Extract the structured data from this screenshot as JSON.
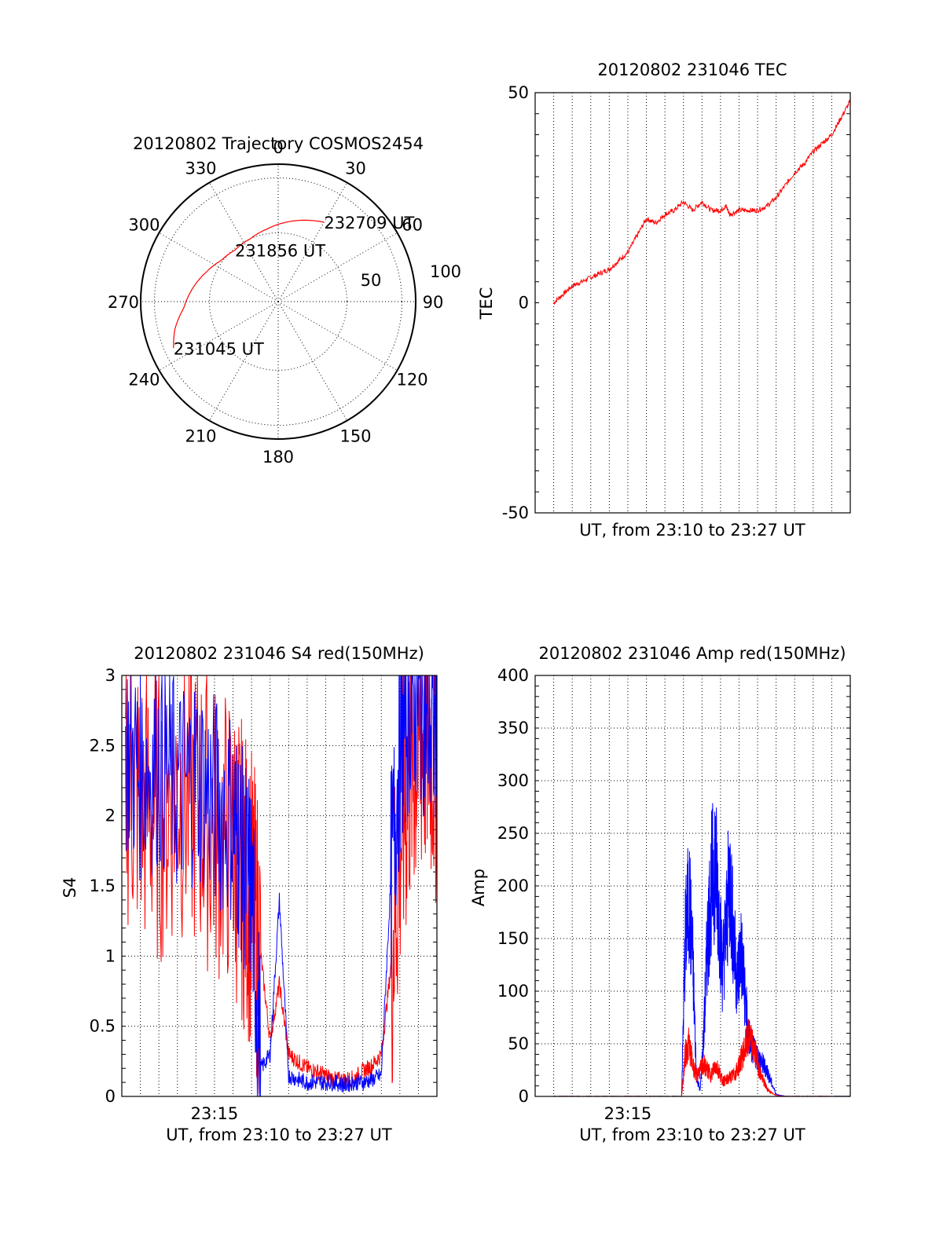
{
  "colors": {
    "red": "#ff0000",
    "blue": "#0000ff",
    "grid": "#000000"
  },
  "chart_data": [
    {
      "id": "trajectory",
      "type": "polar",
      "title": "20120802 Trajectory COSMOS2454",
      "angle_labels": [
        "0",
        "30",
        "60",
        "90",
        "120",
        "150",
        "180",
        "210",
        "240",
        "270",
        "300",
        "330"
      ],
      "radial_labels": [
        "50",
        "100"
      ],
      "track": {
        "series_color": "red",
        "points": [
          {
            "azimuth": 246,
            "elevation": 15
          },
          {
            "azimuth": 255,
            "elevation": 20
          },
          {
            "azimuth": 266,
            "elevation": 28
          },
          {
            "azimuth": 278,
            "elevation": 33
          },
          {
            "azimuth": 292,
            "elevation": 39
          },
          {
            "azimuth": 306,
            "elevation": 44
          },
          {
            "azimuth": 320,
            "elevation": 46
          },
          {
            "azimuth": 336,
            "elevation": 45
          },
          {
            "azimuth": 351,
            "elevation": 42
          },
          {
            "azimuth": 5,
            "elevation": 38
          },
          {
            "azimuth": 18,
            "elevation": 34
          },
          {
            "azimuth": 30,
            "elevation": 30
          }
        ]
      },
      "annotations": [
        {
          "text": "231045 UT",
          "azimuth": 246,
          "elevation": 15
        },
        {
          "text": "231856 UT",
          "azimuth": 320,
          "elevation": 46
        },
        {
          "text": "232709 UT",
          "azimuth": 30,
          "elevation": 30
        }
      ]
    },
    {
      "id": "tec",
      "type": "line",
      "title": "20120802 231046 TEC",
      "xlabel": "UT, from 23:10 to 23:27 UT",
      "ylabel": "TEC",
      "xlim": [
        0,
        17
      ],
      "ylim": [
        -50,
        50
      ],
      "yticks": [
        "50",
        "0",
        "-50"
      ],
      "ytick_values": [
        50,
        0,
        -50
      ],
      "xticks": [],
      "grid": true,
      "series": [
        {
          "color": "red",
          "x": [
            1,
            1.5,
            2,
            2.5,
            3,
            3.5,
            4,
            4.5,
            5,
            5.5,
            6,
            6.5,
            7,
            7.5,
            8,
            8.5,
            9,
            9.5,
            10,
            10.3,
            10.5,
            11,
            11.5,
            12,
            12.5,
            13,
            13.5,
            14,
            14.5,
            15,
            15.5,
            16,
            16.5,
            17
          ],
          "y": [
            0,
            2,
            4,
            5,
            6,
            7,
            8,
            10,
            12,
            16,
            20,
            19,
            21,
            22,
            24,
            22,
            24,
            22,
            22,
            23,
            21,
            22,
            22,
            22,
            23,
            25,
            28,
            31,
            33,
            36,
            38,
            40,
            44,
            48
          ]
        }
      ]
    },
    {
      "id": "s4",
      "type": "line",
      "title": "20120802 231046 S4 red(150MHz)",
      "xlabel": "UT, from 23:10 to 23:27 UT",
      "ylabel": "S4",
      "xlim": [
        0,
        17
      ],
      "ylim": [
        0,
        3
      ],
      "yticks": [
        "0",
        "0.5",
        "1",
        "1.5",
        "2",
        "2.5",
        "3"
      ],
      "ytick_values": [
        0,
        0.5,
        1,
        1.5,
        2,
        2.5,
        3
      ],
      "xticks": [
        "23:15"
      ],
      "xtick_values": [
        5
      ],
      "grid": true,
      "series": [
        {
          "color": "red",
          "x": [
            0.2,
            1,
            2,
            3,
            4,
            5,
            6,
            6.5,
            7,
            7.5,
            8,
            8.5,
            9,
            9.5,
            10,
            10.5,
            11,
            11.5,
            12,
            12.5,
            13,
            13.5,
            14,
            14.5,
            15,
            15.5,
            16,
            16.5,
            17
          ],
          "y": [
            2.3,
            2.1,
            2.0,
            2.2,
            2.1,
            1.9,
            1.8,
            1.6,
            1.4,
            1.0,
            0.4,
            0.8,
            0.3,
            0.25,
            0.2,
            0.18,
            0.15,
            0.12,
            0.12,
            0.13,
            0.18,
            0.22,
            0.3,
            0.9,
            1.8,
            2.3,
            2.5,
            2.6,
            2.4
          ]
        },
        {
          "color": "blue",
          "x": [
            0.2,
            1,
            2,
            3,
            4,
            5,
            6,
            6.5,
            7,
            7.5,
            8,
            8.5,
            9,
            9.5,
            10,
            10.5,
            11,
            11.5,
            12,
            12.5,
            13,
            13.5,
            14,
            14.5,
            15,
            15.5,
            16,
            16.5,
            17
          ],
          "y": [
            2.5,
            2.3,
            2.4,
            2.2,
            2.3,
            2.1,
            2.0,
            1.7,
            1.5,
            0.2,
            0.3,
            1.4,
            0.15,
            0.12,
            0.1,
            0.1,
            0.1,
            0.1,
            0.08,
            0.1,
            0.1,
            0.12,
            0.15,
            1.5,
            2.5,
            2.8,
            2.9,
            2.7,
            2.6
          ]
        }
      ]
    },
    {
      "id": "amp",
      "type": "line",
      "title": "20120802 231046 Amp red(150MHz)",
      "xlabel": "UT, from 23:10 to 23:27 UT",
      "ylabel": "Amp",
      "xlim": [
        0,
        17
      ],
      "ylim": [
        0,
        400
      ],
      "yticks": [
        "0",
        "50",
        "100",
        "150",
        "200",
        "250",
        "300",
        "350",
        "400"
      ],
      "ytick_values": [
        0,
        50,
        100,
        150,
        200,
        250,
        300,
        350,
        400
      ],
      "xticks": [
        "23:15"
      ],
      "xtick_values": [
        5
      ],
      "grid": true,
      "series": [
        {
          "color": "blue",
          "x": [
            1,
            2,
            3,
            4,
            5,
            6,
            7,
            7.9,
            8.1,
            8.3,
            8.5,
            8.7,
            8.9,
            9.1,
            9.3,
            9.5,
            9.7,
            9.9,
            10.1,
            10.3,
            10.5,
            10.7,
            10.9,
            11.1,
            11.3,
            11.5,
            11.7,
            11.9,
            12.1,
            12.3,
            12.5,
            12.7,
            13,
            13.5,
            14,
            15,
            16,
            17
          ],
          "y": [
            0,
            0,
            0,
            0,
            0,
            0,
            0,
            0,
            150,
            190,
            130,
            20,
            5,
            60,
            150,
            200,
            225,
            180,
            120,
            160,
            210,
            150,
            110,
            140,
            100,
            60,
            45,
            40,
            35,
            30,
            25,
            15,
            2,
            0,
            0,
            0,
            0,
            0
          ]
        },
        {
          "color": "red",
          "x": [
            1,
            2,
            3,
            4,
            5,
            6,
            7,
            7.9,
            8.1,
            8.3,
            8.5,
            8.7,
            8.9,
            9.1,
            9.3,
            9.5,
            9.7,
            9.9,
            10.1,
            10.3,
            10.5,
            10.7,
            10.9,
            11.1,
            11.3,
            11.5,
            11.7,
            11.9,
            12.1,
            12.3,
            12.5,
            12.7,
            13,
            13.5,
            14,
            15,
            16,
            17
          ],
          "y": [
            0,
            0,
            0,
            0,
            0,
            0,
            0,
            0,
            40,
            50,
            30,
            20,
            25,
            30,
            25,
            20,
            30,
            25,
            15,
            15,
            18,
            20,
            25,
            35,
            45,
            55,
            50,
            40,
            25,
            15,
            8,
            4,
            1,
            0,
            0,
            0,
            0,
            0
          ]
        }
      ]
    }
  ]
}
